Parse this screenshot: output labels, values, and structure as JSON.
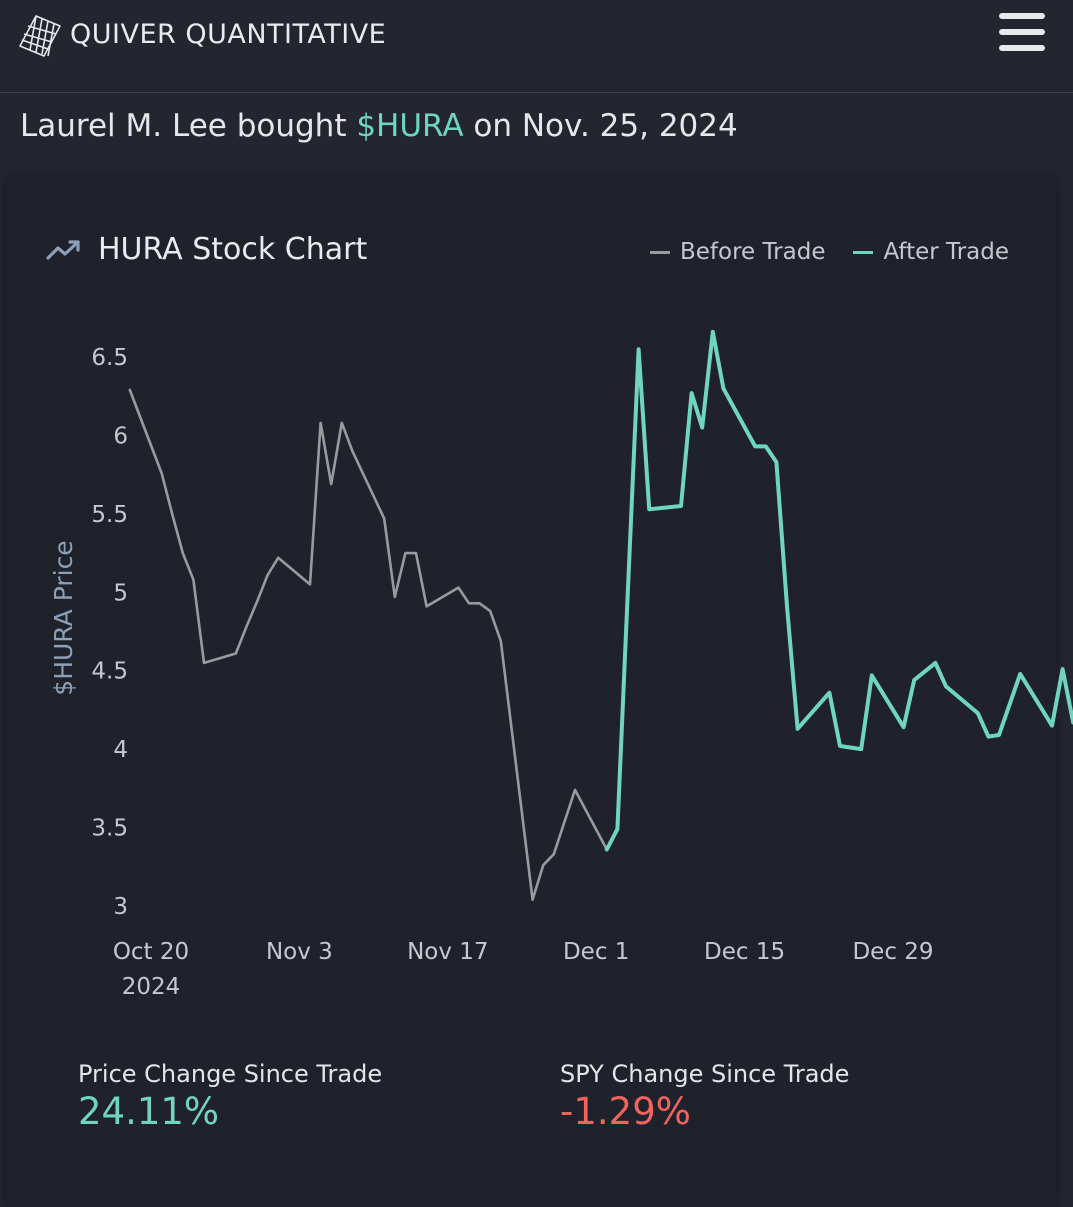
{
  "header": {
    "brand": "QUIVER QUANTITATIVE",
    "logo_icon": "quiver-cube-logo",
    "menu_icon": "hamburger-menu-icon"
  },
  "headline": {
    "prefix": "Laurel M. Lee bought ",
    "ticker": "$HURA",
    "suffix": " on Nov. 25, 2024"
  },
  "card": {
    "title": "HURA Stock Chart",
    "title_icon": "trending-up-icon",
    "legend": [
      {
        "label": "Before Trade",
        "color": "#9a9a9e"
      },
      {
        "label": "After Trade",
        "color": "#6fd6bd"
      }
    ]
  },
  "stats": {
    "price_change": {
      "label": "Price Change Since Trade",
      "value": "24.11%",
      "color": "#6fd6bd"
    },
    "spy_change": {
      "label": "SPY Change Since Trade",
      "value": "-1.29%",
      "color": "#f0645f"
    }
  },
  "chart_data": {
    "type": "line",
    "ylabel": "$HURA Price",
    "xlabel": "",
    "ylim": [
      3,
      6.6
    ],
    "yticks": [
      "3",
      "3.5",
      "4",
      "4.5",
      "5",
      "5.5",
      "6",
      "6.5"
    ],
    "xticks": [
      {
        "label": "Oct 20",
        "sub": "2024",
        "date": "2024-10-20"
      },
      {
        "label": "Nov 3",
        "date": "2024-11-03"
      },
      {
        "label": "Nov 17",
        "date": "2024-11-17"
      },
      {
        "label": "Dec 1",
        "date": "2024-12-01"
      },
      {
        "label": "Dec 15",
        "date": "2024-12-15"
      },
      {
        "label": "Dec 29",
        "date": "2024-12-29"
      }
    ],
    "series": [
      {
        "name": "Before Trade",
        "color": "#9a9a9e",
        "points": [
          [
            "2024-10-18",
            6.29
          ],
          [
            "2024-10-21",
            5.76
          ],
          [
            "2024-10-22",
            5.5
          ],
          [
            "2024-10-23",
            5.25
          ],
          [
            "2024-10-24",
            5.08
          ],
          [
            "2024-10-25",
            4.55
          ],
          [
            "2024-10-28",
            4.61
          ],
          [
            "2024-10-29",
            4.78
          ],
          [
            "2024-10-30",
            4.94
          ],
          [
            "2024-10-31",
            5.11
          ],
          [
            "2024-11-01",
            5.22
          ],
          [
            "2024-11-04",
            5.05
          ],
          [
            "2024-11-05",
            6.08
          ],
          [
            "2024-11-06",
            5.69
          ],
          [
            "2024-11-07",
            6.08
          ],
          [
            "2024-11-08",
            5.9
          ],
          [
            "2024-11-11",
            5.47
          ],
          [
            "2024-11-12",
            4.97
          ],
          [
            "2024-11-13",
            5.25
          ],
          [
            "2024-11-14",
            5.25
          ],
          [
            "2024-11-15",
            4.91
          ],
          [
            "2024-11-18",
            5.03
          ],
          [
            "2024-11-19",
            4.93
          ],
          [
            "2024-11-20",
            4.93
          ],
          [
            "2024-11-21",
            4.88
          ],
          [
            "2024-11-22",
            4.69
          ],
          [
            "2024-11-25",
            3.04
          ],
          [
            "2024-11-26",
            3.26
          ],
          [
            "2024-11-27",
            3.33
          ],
          [
            "2024-11-29",
            3.74
          ],
          [
            "2024-12-02",
            3.36
          ]
        ]
      },
      {
        "name": "After Trade",
        "color": "#6fd6bd",
        "points": [
          [
            "2024-12-02",
            3.36
          ],
          [
            "2024-12-03",
            3.49
          ],
          [
            "2024-12-04",
            5.03
          ],
          [
            "2024-12-05",
            6.55
          ],
          [
            "2024-12-06",
            5.53
          ],
          [
            "2024-12-09",
            5.55
          ],
          [
            "2024-12-10",
            6.27
          ],
          [
            "2024-12-11",
            6.05
          ],
          [
            "2024-12-12",
            6.66
          ],
          [
            "2024-12-13",
            6.3
          ],
          [
            "2024-12-16",
            5.93
          ],
          [
            "2024-12-17",
            5.93
          ],
          [
            "2024-12-18",
            5.83
          ],
          [
            "2024-12-19",
            4.91
          ],
          [
            "2024-12-20",
            4.13
          ],
          [
            "2024-12-23",
            4.36
          ],
          [
            "2024-12-24",
            4.02
          ],
          [
            "2024-12-26",
            4.0
          ],
          [
            "2024-12-27",
            4.47
          ],
          [
            "2024-12-30",
            4.14
          ],
          [
            "2024-12-31",
            4.44
          ],
          [
            "2025-01-02",
            4.55
          ],
          [
            "2025-01-03",
            4.4
          ],
          [
            "2025-01-06",
            4.23
          ],
          [
            "2025-01-07",
            4.08
          ],
          [
            "2025-01-08",
            4.09
          ],
          [
            "2025-01-10",
            4.48
          ],
          [
            "2025-01-13",
            4.15
          ],
          [
            "2025-01-14",
            4.51
          ],
          [
            "2025-01-15",
            4.17
          ]
        ]
      }
    ],
    "grid": false,
    "legend_position": "top-right"
  }
}
